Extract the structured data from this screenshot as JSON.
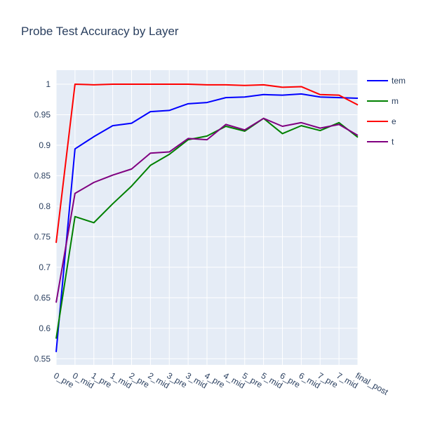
{
  "chart_data": {
    "type": "line",
    "title": "Probe Test Accuracy by Layer",
    "xlabel": "",
    "ylabel": "",
    "ylim": [
      0.54,
      1.023
    ],
    "y_ticks": [
      "0.55",
      "0.6",
      "0.65",
      "0.7",
      "0.75",
      "0.8",
      "0.85",
      "0.9",
      "0.95",
      "1"
    ],
    "categories": [
      "0_pre",
      "0_mid",
      "1_pre",
      "1_mid",
      "2_pre",
      "2_mid",
      "3_pre",
      "3_mid",
      "4_pre",
      "4_mid",
      "5_pre",
      "5_mid",
      "6_pre",
      "6_mid",
      "7_pre",
      "7_mid",
      "final_post"
    ],
    "grid": true,
    "legend_position": "top-right",
    "series": [
      {
        "name": "tem",
        "color": "#0000ff",
        "values": [
          0.561,
          0.894,
          0.914,
          0.932,
          0.936,
          0.955,
          0.957,
          0.968,
          0.97,
          0.978,
          0.979,
          0.983,
          0.982,
          0.984,
          0.979,
          0.978,
          0.977
        ]
      },
      {
        "name": "m",
        "color": "#008000",
        "values": [
          0.583,
          0.783,
          0.773,
          0.804,
          0.833,
          0.867,
          0.885,
          0.909,
          0.915,
          0.931,
          0.923,
          0.944,
          0.919,
          0.932,
          0.924,
          0.937,
          0.913
        ]
      },
      {
        "name": "e",
        "color": "#ff0000",
        "values": [
          0.74,
          1.0,
          0.999,
          1.0,
          1.0,
          1.0,
          1.0,
          1.0,
          0.999,
          0.999,
          0.998,
          0.999,
          0.995,
          0.996,
          0.983,
          0.982,
          0.966
        ]
      },
      {
        "name": "t",
        "color": "#800080",
        "values": [
          0.642,
          0.821,
          0.839,
          0.851,
          0.861,
          0.887,
          0.889,
          0.911,
          0.909,
          0.934,
          0.925,
          0.944,
          0.931,
          0.937,
          0.928,
          0.934,
          0.916
        ]
      }
    ]
  }
}
